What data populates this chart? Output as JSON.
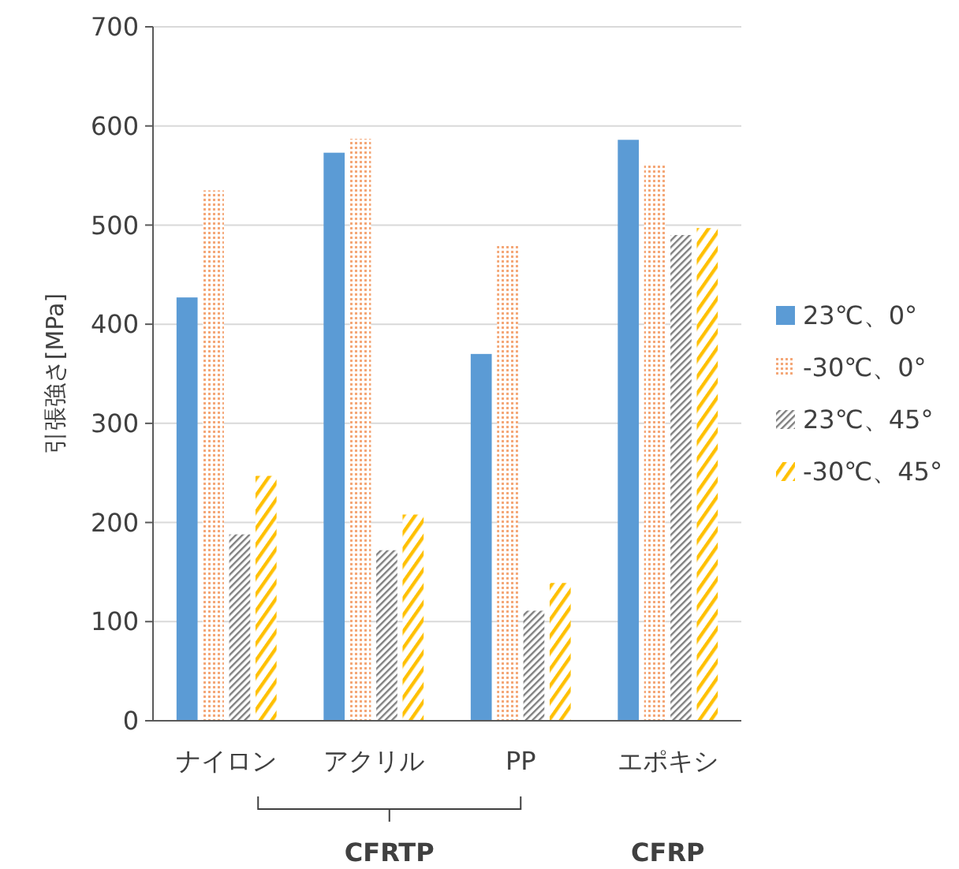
{
  "chart_data": {
    "type": "bar",
    "ylabel": "引張強さ[MPa]",
    "categories": [
      "ナイロン",
      "アクリル",
      "PP",
      "エポキシ"
    ],
    "series": [
      {
        "name": "23℃、0°",
        "color": "#5b9bd5",
        "values": [
          427,
          573,
          370,
          586
        ]
      },
      {
        "name": "-30℃、0°",
        "color": "#f4a777",
        "values": [
          535,
          587,
          480,
          562
        ]
      },
      {
        "name": "23℃、45°",
        "color": "#7f7f7f",
        "values": [
          188,
          172,
          111,
          490
        ]
      },
      {
        "name": "-30℃、45°",
        "color": "#ffc000",
        "values": [
          247,
          208,
          139,
          497
        ]
      }
    ],
    "ylim": [
      0,
      700
    ],
    "yticks": [
      0,
      100,
      200,
      300,
      400,
      500,
      600,
      700
    ],
    "grid": "y",
    "legend": "right",
    "annotations": [
      "CFRTP",
      "CFRP"
    ]
  }
}
